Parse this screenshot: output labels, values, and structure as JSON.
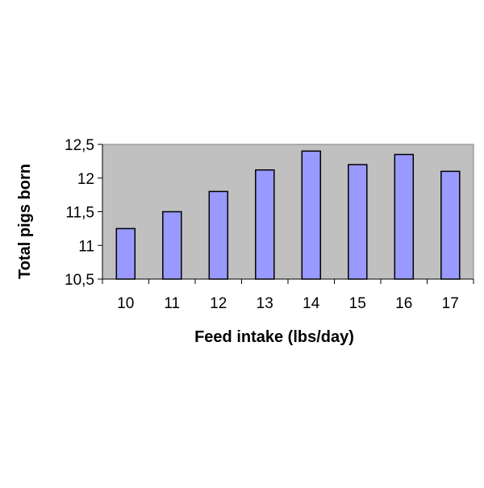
{
  "chart_data": {
    "type": "bar",
    "title": "",
    "xlabel": "Feed intake (lbs/day)",
    "ylabel": "Total pigs born",
    "categories": [
      "10",
      "11",
      "12",
      "13",
      "14",
      "15",
      "16",
      "17"
    ],
    "values": [
      11.25,
      11.5,
      11.8,
      12.12,
      12.4,
      12.2,
      12.35,
      12.1
    ],
    "ylim": [
      10.5,
      12.5
    ],
    "yticks": [
      10.5,
      11,
      11.5,
      12,
      12.5
    ],
    "ytick_labels": [
      "10,5",
      "11",
      "11,5",
      "12",
      "12,5"
    ],
    "grid": false,
    "legend": "none",
    "colors": {
      "bar_fill": "#9999ff",
      "bar_stroke": "#000000",
      "plot_background": "#c0c0c0",
      "page_background": "#ffffff"
    }
  }
}
